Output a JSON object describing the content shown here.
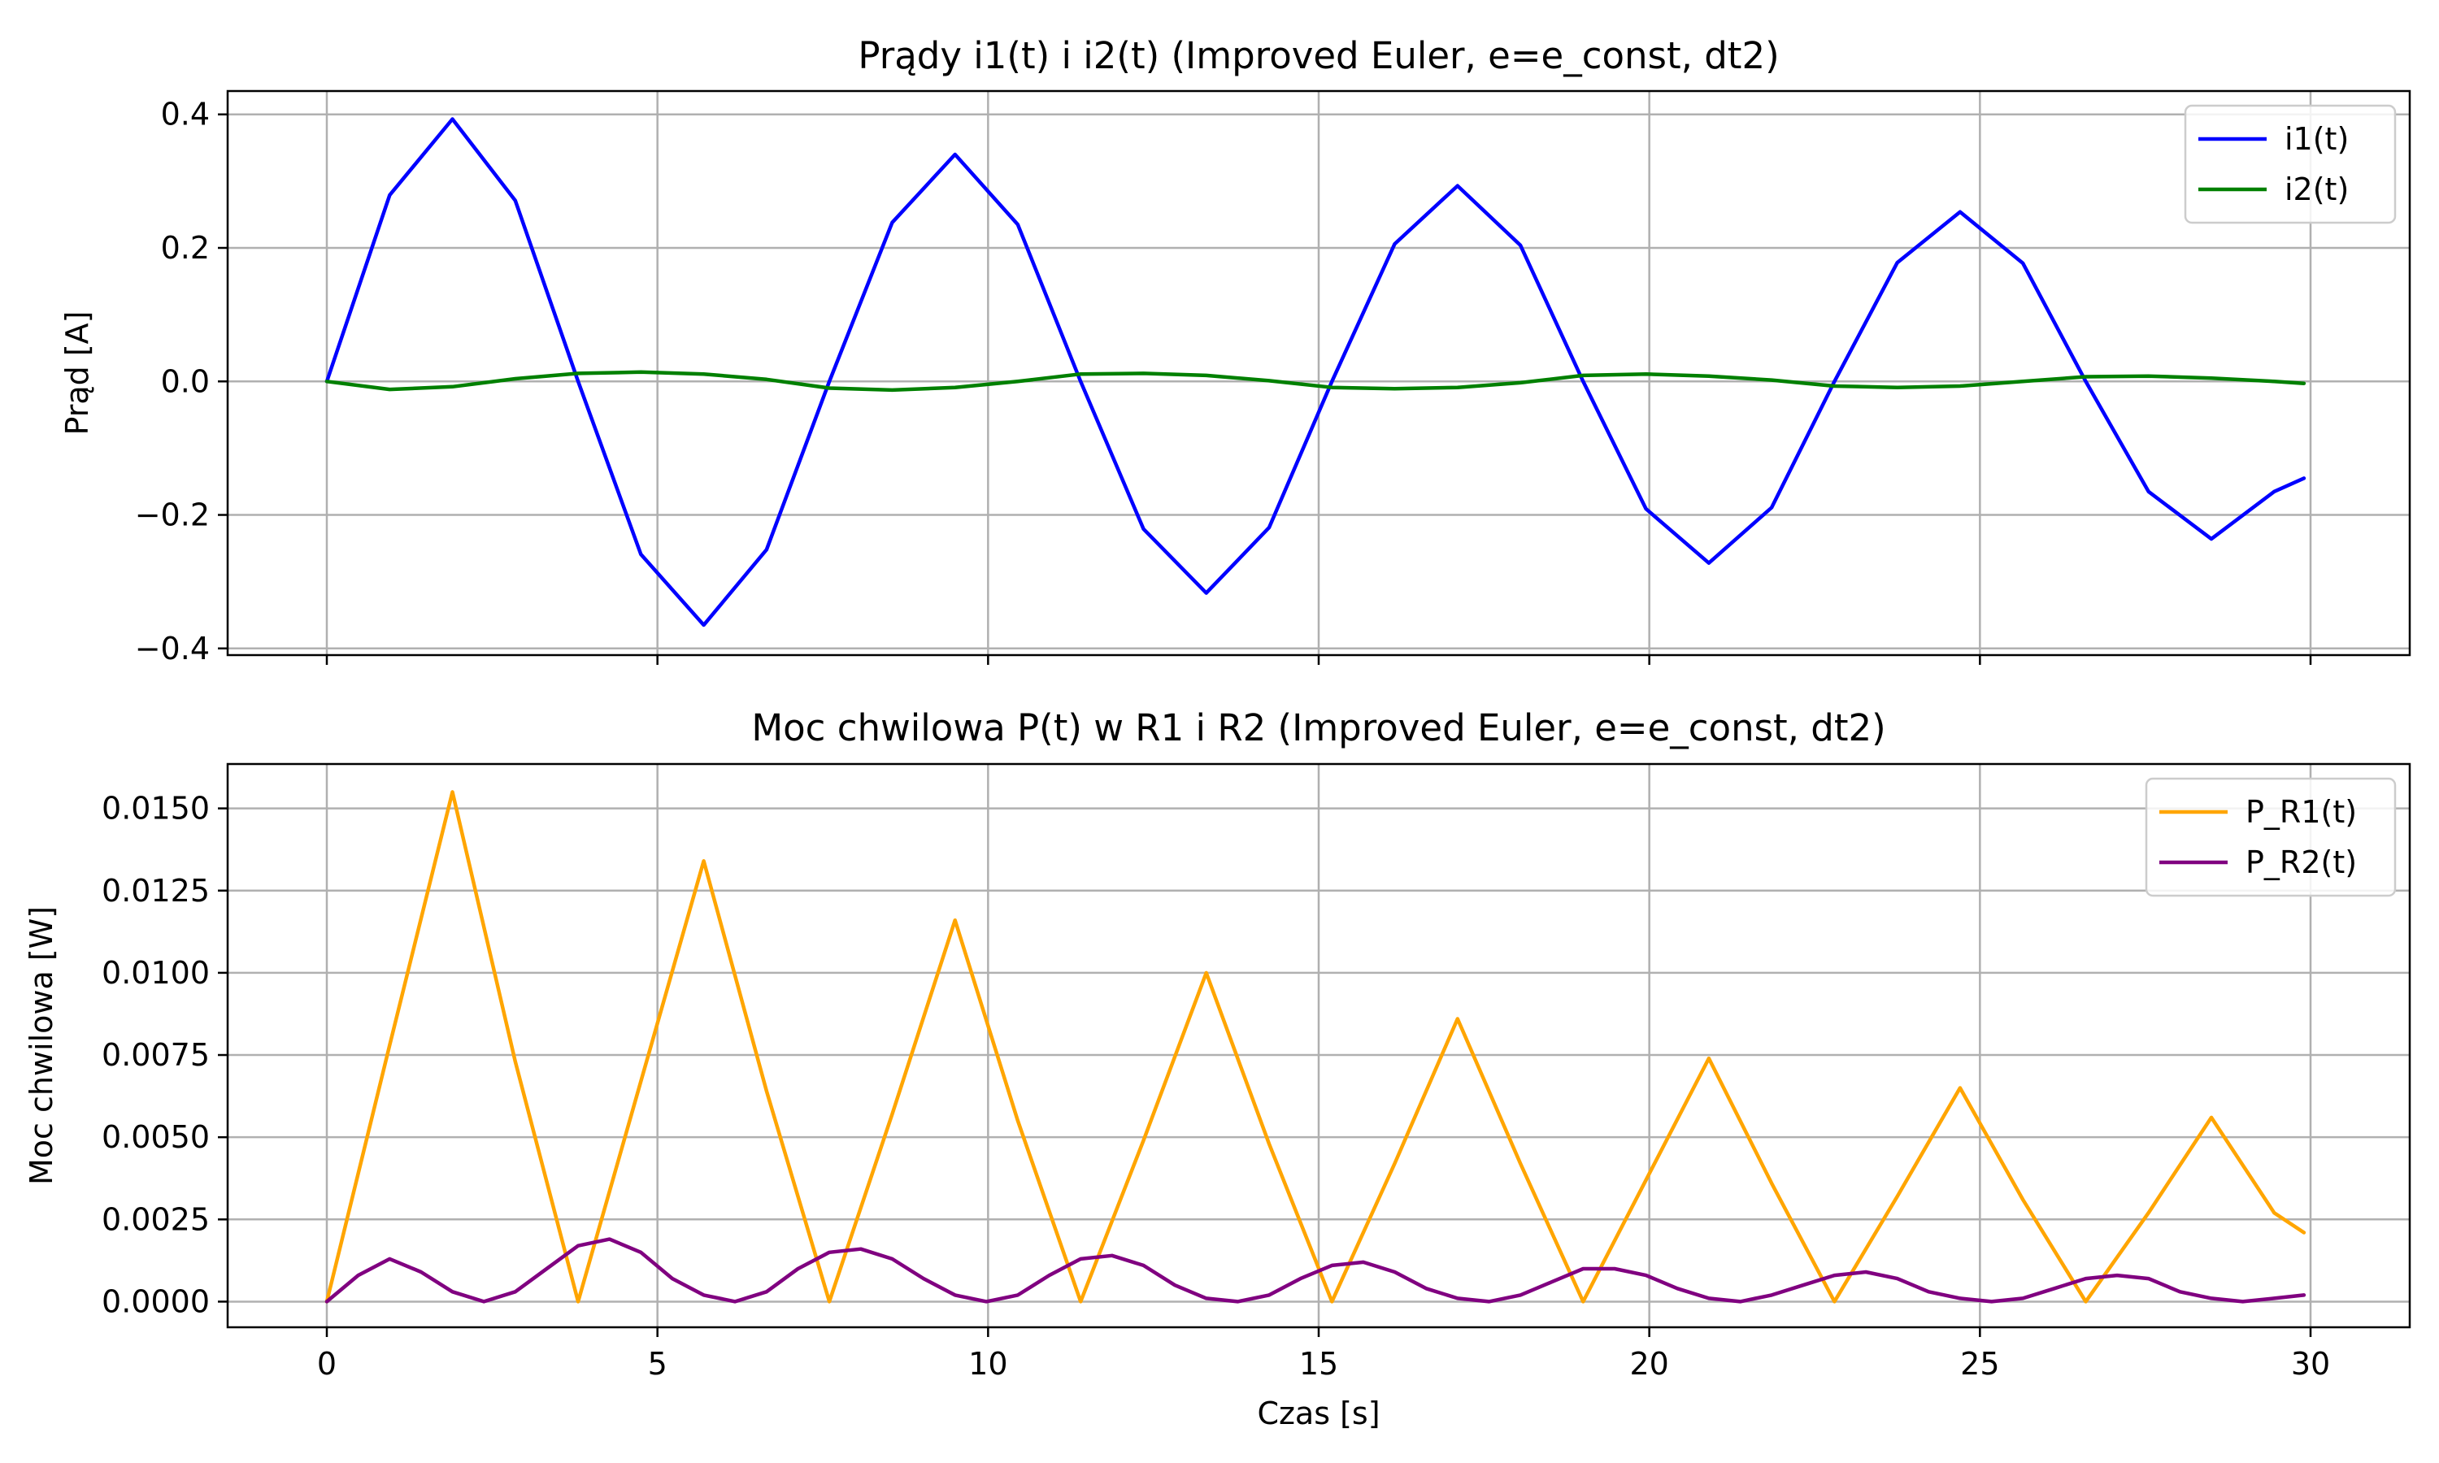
{
  "chart_data": [
    {
      "type": "line",
      "title": "Prądy i1(t) i i2(t) (Improved Euler, e=e_const, dt2)",
      "xlabel": "",
      "ylabel": "Prąd [A]",
      "xlim": [
        -1.5,
        31.5
      ],
      "ylim": [
        -0.41,
        0.435
      ],
      "xticks": [
        0,
        5,
        10,
        15,
        20,
        25,
        30
      ],
      "xtick_labels": [
        "",
        "",
        "",
        "",
        "",
        "",
        ""
      ],
      "yticks": [
        -0.4,
        -0.2,
        0.0,
        0.2,
        0.4
      ],
      "ytick_labels": [
        "−0.4",
        "−0.2",
        "0.0",
        "0.2",
        "0.4"
      ],
      "grid": true,
      "legend": "top-right",
      "series": [
        {
          "name": "i1(t)",
          "color": "#0000ff",
          "x": [
            0,
            0.95,
            1.9,
            2.85,
            3.8,
            4.75,
            5.7,
            6.65,
            7.6,
            8.55,
            9.5,
            10.45,
            11.4,
            12.35,
            13.3,
            14.25,
            15.2,
            16.15,
            17.1,
            18.05,
            19.0,
            19.95,
            20.9,
            21.85,
            22.8,
            23.75,
            24.7,
            25.65,
            26.6,
            27.55,
            28.5,
            29.45,
            29.9
          ],
          "y": [
            0.0,
            0.279,
            0.393,
            0.271,
            0.0,
            -0.259,
            -0.365,
            -0.252,
            0.0,
            0.238,
            0.34,
            0.235,
            0.0,
            -0.221,
            -0.317,
            -0.219,
            0.0,
            0.206,
            0.293,
            0.204,
            0.0,
            -0.191,
            -0.272,
            -0.189,
            0.0,
            0.178,
            0.254,
            0.177,
            0.0,
            -0.165,
            -0.236,
            -0.165,
            -0.145
          ]
        },
        {
          "name": "i2(t)",
          "color": "#008000",
          "x": [
            0,
            0.95,
            1.9,
            2.85,
            3.8,
            4.75,
            5.7,
            6.65,
            7.6,
            8.55,
            9.5,
            10.45,
            11.4,
            12.35,
            13.3,
            14.25,
            15.2,
            16.15,
            17.1,
            18.05,
            19.0,
            19.95,
            20.9,
            21.85,
            22.8,
            23.75,
            24.7,
            25.65,
            26.6,
            27.55,
            28.5,
            29.45,
            29.9
          ],
          "y": [
            0.0,
            -0.012,
            -0.008,
            0.004,
            0.012,
            0.014,
            0.011,
            0.003,
            -0.01,
            -0.013,
            -0.009,
            0.0,
            0.011,
            0.012,
            0.009,
            0.001,
            -0.009,
            -0.011,
            -0.009,
            -0.002,
            0.009,
            0.011,
            0.008,
            0.002,
            -0.007,
            -0.009,
            -0.007,
            0.0,
            0.007,
            0.008,
            0.005,
            0.0,
            -0.003
          ]
        }
      ]
    },
    {
      "type": "line",
      "title": "Moc chwilowa P(t) w R1 i R2 (Improved Euler, e=e_const, dt2)",
      "xlabel": "Czas [s]",
      "ylabel": "Moc chwilowa [W]",
      "xlim": [
        -1.5,
        31.5
      ],
      "ylim": [
        -0.00078,
        0.01635
      ],
      "xticks": [
        0,
        5,
        10,
        15,
        20,
        25,
        30
      ],
      "xtick_labels": [
        "0",
        "5",
        "10",
        "15",
        "20",
        "25",
        "30"
      ],
      "yticks": [
        0.0,
        0.0025,
        0.005,
        0.0075,
        0.01,
        0.0125,
        0.015
      ],
      "ytick_labels": [
        "0.0000",
        "0.0025",
        "0.0050",
        "0.0075",
        "0.0100",
        "0.0125",
        "0.0150"
      ],
      "grid": true,
      "legend": "top-right",
      "series": [
        {
          "name": "P_R1(t)",
          "color": "#ffa500",
          "x": [
            0,
            0.95,
            1.9,
            2.85,
            3.8,
            4.75,
            5.7,
            6.65,
            7.6,
            8.55,
            9.5,
            10.45,
            11.4,
            12.35,
            13.3,
            14.25,
            15.2,
            16.15,
            17.1,
            18.05,
            19.0,
            19.95,
            20.9,
            21.85,
            22.8,
            23.75,
            24.7,
            25.65,
            26.6,
            27.55,
            28.5,
            29.45,
            29.9
          ],
          "y": [
            0.0,
            0.0078,
            0.0155,
            0.0073,
            0.0,
            0.0067,
            0.0134,
            0.0064,
            0.0,
            0.0057,
            0.0116,
            0.0055,
            0.0,
            0.0049,
            0.01,
            0.0048,
            0.0,
            0.0042,
            0.0086,
            0.0042,
            0.0,
            0.0037,
            0.0074,
            0.0036,
            0.0,
            0.0032,
            0.0065,
            0.0031,
            0.0,
            0.0027,
            0.0056,
            0.0027,
            0.0021
          ]
        },
        {
          "name": "P_R2(t)",
          "color": "#800080",
          "x": [
            0,
            0.475,
            0.95,
            1.425,
            1.9,
            2.375,
            2.85,
            3.325,
            3.8,
            4.275,
            4.75,
            5.225,
            5.7,
            6.175,
            6.65,
            7.125,
            7.6,
            8.075,
            8.55,
            9.025,
            9.5,
            9.975,
            10.45,
            10.925,
            11.4,
            11.875,
            12.35,
            12.825,
            13.3,
            13.775,
            14.25,
            14.725,
            15.2,
            15.675,
            16.15,
            16.625,
            17.1,
            17.575,
            18.05,
            18.525,
            19.0,
            19.475,
            19.95,
            20.425,
            20.9,
            21.375,
            21.85,
            22.325,
            22.8,
            23.275,
            23.75,
            24.225,
            24.7,
            25.175,
            25.65,
            26.125,
            26.6,
            27.075,
            27.55,
            28.025,
            28.5,
            28.975,
            29.45,
            29.9
          ],
          "y": [
            0.0,
            0.0008,
            0.0013,
            0.0009,
            0.0003,
            0.0,
            0.0003,
            0.001,
            0.0017,
            0.0019,
            0.0015,
            0.0007,
            0.0002,
            0.0,
            0.0003,
            0.001,
            0.0015,
            0.0016,
            0.0013,
            0.0007,
            0.0002,
            0.0,
            0.0002,
            0.0008,
            0.0013,
            0.0014,
            0.0011,
            0.0005,
            0.0001,
            0.0,
            0.0002,
            0.0007,
            0.0011,
            0.0012,
            0.0009,
            0.0004,
            0.0001,
            0.0,
            0.0002,
            0.0006,
            0.001,
            0.001,
            0.0008,
            0.0004,
            0.0001,
            0.0,
            0.0002,
            0.0005,
            0.0008,
            0.0009,
            0.0007,
            0.0003,
            0.0001,
            0.0,
            0.0001,
            0.0004,
            0.0007,
            0.0008,
            0.0007,
            0.0003,
            0.0001,
            0.0,
            0.0001,
            0.0002
          ]
        }
      ]
    }
  ]
}
